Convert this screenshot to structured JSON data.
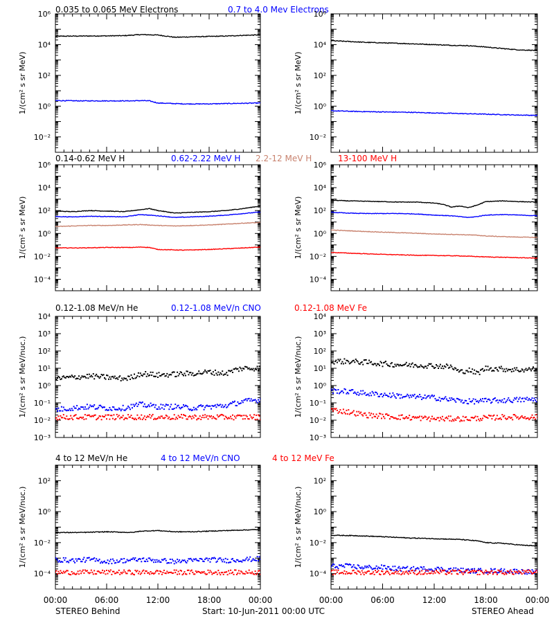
{
  "footer": {
    "x_ticks": [
      "00:00",
      "06:00",
      "12:00",
      "18:00",
      "00:00"
    ],
    "left_label": "STEREO Behind",
    "center_label": "Start: 10-Jun-2011 00:00 UTC",
    "right_label": "STEREO Ahead"
  },
  "colors": {
    "black": "#000000",
    "blue": "#0000ff",
    "tan": "#c8826e",
    "red": "#ff0000"
  },
  "chart_data": [
    {
      "type": "line",
      "panel": "row1-left",
      "legend": [
        {
          "text": "0.035 to 0.065 MeV Electrons",
          "color": "#000000"
        },
        {
          "text": "0.7 to 4.0 Mev Electrons",
          "color": "#0000ff"
        }
      ],
      "ylabel": "1/(cm² s sr MeV)",
      "yscale": "log",
      "ylim": [
        0.001,
        1000000
      ],
      "y_ticks": [
        {
          "v": 1000000,
          "t": "10⁶"
        },
        {
          "v": 10000,
          "t": "10⁴"
        },
        {
          "v": 100,
          "t": "10²"
        },
        {
          "v": 1,
          "t": "10⁰"
        },
        {
          "v": 0.01,
          "t": "10⁻²"
        }
      ],
      "xlim": [
        0,
        24
      ],
      "series": [
        {
          "color": "#000000",
          "style": "line",
          "x": [
            0,
            3,
            6,
            8,
            10,
            12,
            14,
            16,
            18,
            20,
            22,
            24
          ],
          "y": [
            35000,
            36000,
            37000,
            38000,
            45000,
            42000,
            30000,
            32000,
            34000,
            36000,
            40000,
            43000
          ]
        },
        {
          "color": "#0000ff",
          "style": "line",
          "x": [
            0,
            3,
            6,
            9,
            10,
            11,
            12,
            15,
            18,
            21,
            24
          ],
          "y": [
            2.3,
            2.2,
            2.2,
            2.2,
            2.3,
            2.2,
            1.6,
            1.4,
            1.4,
            1.5,
            1.6
          ]
        }
      ]
    },
    {
      "type": "line",
      "panel": "row1-right",
      "legend": [],
      "ylabel": "1/(cm² s sr MeV)",
      "yscale": "log",
      "ylim": [
        0.001,
        1000000
      ],
      "y_ticks": [
        {
          "v": 1000000,
          "t": "10⁶"
        },
        {
          "v": 10000,
          "t": "10⁴"
        },
        {
          "v": 100,
          "t": "10²"
        },
        {
          "v": 1,
          "t": "10⁰"
        },
        {
          "v": 0.01,
          "t": "10⁻²"
        }
      ],
      "xlim": [
        0,
        24
      ],
      "series": [
        {
          "color": "#000000",
          "style": "line",
          "x": [
            0,
            2,
            4,
            6,
            8,
            10,
            12,
            14,
            16,
            18,
            20,
            22,
            24
          ],
          "y": [
            18000,
            16000,
            14000,
            13000,
            12000,
            11000,
            10000,
            9000,
            8500,
            7000,
            5500,
            4500,
            4200
          ]
        },
        {
          "color": "#0000ff",
          "style": "line",
          "x": [
            0,
            3,
            6,
            9,
            12,
            15,
            18,
            21,
            24
          ],
          "y": [
            0.5,
            0.45,
            0.42,
            0.4,
            0.36,
            0.33,
            0.3,
            0.27,
            0.25
          ]
        }
      ]
    },
    {
      "type": "line",
      "panel": "row2-left",
      "legend": [
        {
          "text": "0.14-0.62 MeV H",
          "color": "#000000"
        },
        {
          "text": "0.62-2.22 MeV H",
          "color": "#0000ff"
        },
        {
          "text": "2.2-12 MeV H",
          "color": "#c8826e"
        },
        {
          "text": "13-100 MeV H",
          "color": "#ff0000"
        }
      ],
      "ylabel": "1/(cm² s sr MeV)",
      "yscale": "log",
      "ylim": [
        1e-05,
        1000000
      ],
      "y_ticks": [
        {
          "v": 1000000,
          "t": "10⁶"
        },
        {
          "v": 10000,
          "t": "10⁴"
        },
        {
          "v": 100,
          "t": "10²"
        },
        {
          "v": 1,
          "t": "10⁰"
        },
        {
          "v": 0.01,
          "t": "10⁻²"
        },
        {
          "v": 0.0001,
          "t": "10⁻⁴"
        }
      ],
      "xlim": [
        0,
        24
      ],
      "series": [
        {
          "color": "#000000",
          "style": "line",
          "x": [
            0,
            2,
            4,
            6,
            8,
            10,
            11,
            12,
            14,
            16,
            18,
            20,
            22,
            24
          ],
          "y": [
            90,
            80,
            100,
            90,
            80,
            120,
            150,
            100,
            60,
            70,
            80,
            100,
            150,
            250
          ]
        },
        {
          "color": "#0000ff",
          "style": "line",
          "x": [
            0,
            2,
            4,
            6,
            8,
            10,
            12,
            14,
            16,
            18,
            20,
            22,
            24
          ],
          "y": [
            30,
            28,
            32,
            30,
            28,
            45,
            35,
            25,
            28,
            32,
            40,
            55,
            75
          ]
        },
        {
          "color": "#c8826e",
          "style": "line",
          "x": [
            0,
            2,
            4,
            6,
            8,
            10,
            12,
            14,
            16,
            18,
            20,
            22,
            24
          ],
          "y": [
            4,
            4.5,
            5,
            5,
            5.5,
            6,
            5,
            4.5,
            5,
            5.5,
            6.5,
            8,
            9
          ]
        },
        {
          "color": "#ff0000",
          "style": "line",
          "x": [
            0,
            3,
            6,
            9,
            10,
            11,
            12,
            15,
            18,
            21,
            24
          ],
          "y": [
            0.055,
            0.055,
            0.06,
            0.06,
            0.065,
            0.06,
            0.04,
            0.035,
            0.04,
            0.05,
            0.065
          ]
        }
      ]
    },
    {
      "type": "line",
      "panel": "row2-right",
      "legend": [],
      "ylabel": "1/(cm² s sr MeV)",
      "yscale": "log",
      "ylim": [
        1e-05,
        1000000
      ],
      "y_ticks": [
        {
          "v": 1000000,
          "t": "10⁶"
        },
        {
          "v": 10000,
          "t": "10⁴"
        },
        {
          "v": 100,
          "t": "10²"
        },
        {
          "v": 1,
          "t": "10⁰"
        },
        {
          "v": 0.01,
          "t": "10⁻²"
        },
        {
          "v": 0.0001,
          "t": "10⁻⁴"
        }
      ],
      "xlim": [
        0,
        24
      ],
      "series": [
        {
          "color": "#000000",
          "style": "line",
          "x": [
            0,
            2,
            4,
            6,
            8,
            10,
            12,
            13,
            14,
            15,
            16,
            17,
            18,
            20,
            22,
            24
          ],
          "y": [
            800,
            700,
            650,
            600,
            550,
            550,
            450,
            350,
            200,
            250,
            180,
            300,
            600,
            700,
            600,
            550
          ]
        },
        {
          "color": "#0000ff",
          "style": "line",
          "x": [
            0,
            2,
            4,
            6,
            8,
            10,
            12,
            14,
            16,
            17,
            18,
            20,
            22,
            24
          ],
          "y": [
            70,
            60,
            55,
            55,
            55,
            50,
            40,
            35,
            25,
            30,
            40,
            45,
            40,
            35
          ]
        },
        {
          "color": "#c8826e",
          "style": "line",
          "x": [
            0,
            3,
            6,
            9,
            12,
            15,
            17,
            18,
            21,
            24
          ],
          "y": [
            2,
            1.6,
            1.3,
            1.1,
            0.9,
            0.8,
            0.7,
            0.6,
            0.5,
            0.45
          ]
        },
        {
          "color": "#ff0000",
          "style": "line",
          "x": [
            0,
            3,
            6,
            9,
            12,
            15,
            18,
            21,
            24
          ],
          "y": [
            0.022,
            0.018,
            0.015,
            0.013,
            0.012,
            0.011,
            0.009,
            0.008,
            0.007
          ]
        }
      ]
    },
    {
      "type": "scatter",
      "panel": "row3-left",
      "legend": [
        {
          "text": "0.12-1.08 MeV/n He",
          "color": "#000000"
        },
        {
          "text": "0.12-1.08 MeV/n CNO",
          "color": "#0000ff"
        },
        {
          "text": "0.12-1.08 MeV Fe",
          "color": "#ff0000"
        }
      ],
      "ylabel": "1/(cm² s sr MeV/nuc.)",
      "yscale": "log",
      "ylim": [
        0.001,
        10000
      ],
      "y_ticks": [
        {
          "v": 10000,
          "t": "10⁴"
        },
        {
          "v": 1000,
          "t": "10³"
        },
        {
          "v": 100,
          "t": "10²"
        },
        {
          "v": 10,
          "t": "10¹"
        },
        {
          "v": 1,
          "t": "10⁰"
        },
        {
          "v": 0.1,
          "t": "10⁻¹"
        },
        {
          "v": 0.01,
          "t": "10⁻²"
        },
        {
          "v": 0.001,
          "t": "10⁻³"
        }
      ],
      "xlim": [
        0,
        24
      ],
      "series": [
        {
          "color": "#000000",
          "style": "dots",
          "x": [
            0,
            2,
            4,
            6,
            8,
            9,
            10,
            12,
            14,
            16,
            18,
            20,
            21,
            22,
            24
          ],
          "y": [
            2.5,
            3,
            3.5,
            3,
            2.5,
            3,
            5,
            4,
            4.5,
            5,
            6,
            5,
            8,
            10,
            10
          ]
        },
        {
          "color": "#0000ff",
          "style": "dots",
          "x": [
            0,
            2,
            4,
            6,
            8,
            10,
            12,
            14,
            16,
            18,
            20,
            22,
            24
          ],
          "y": [
            0.04,
            0.05,
            0.06,
            0.05,
            0.05,
            0.08,
            0.06,
            0.06,
            0.05,
            0.06,
            0.07,
            0.12,
            0.15
          ]
        },
        {
          "color": "#ff0000",
          "style": "dots",
          "x": [
            0,
            4,
            8,
            12,
            16,
            20,
            24
          ],
          "y": [
            0.015,
            0.015,
            0.015,
            0.015,
            0.015,
            0.015,
            0.015
          ]
        }
      ]
    },
    {
      "type": "scatter",
      "panel": "row3-right",
      "legend": [],
      "ylabel": "1/(cm² s sr MeV/nuc.)",
      "yscale": "log",
      "ylim": [
        0.001,
        10000
      ],
      "y_ticks": [
        {
          "v": 10000,
          "t": "10⁴"
        },
        {
          "v": 1000,
          "t": "10³"
        },
        {
          "v": 100,
          "t": "10²"
        },
        {
          "v": 10,
          "t": "10¹"
        },
        {
          "v": 1,
          "t": "10⁰"
        },
        {
          "v": 0.1,
          "t": "10⁻¹"
        },
        {
          "v": 0.01,
          "t": "10⁻²"
        },
        {
          "v": 0.001,
          "t": "10⁻³"
        }
      ],
      "xlim": [
        0,
        24
      ],
      "series": [
        {
          "color": "#000000",
          "style": "dots",
          "x": [
            0,
            2,
            4,
            6,
            8,
            10,
            12,
            14,
            15,
            16,
            17,
            18,
            20,
            22,
            24
          ],
          "y": [
            25,
            25,
            22,
            18,
            16,
            15,
            14,
            12,
            6,
            8,
            5,
            10,
            9,
            8,
            9
          ]
        },
        {
          "color": "#0000ff",
          "style": "dots",
          "x": [
            0,
            2,
            4,
            6,
            8,
            10,
            12,
            14,
            16,
            18,
            20,
            22,
            24
          ],
          "y": [
            0.5,
            0.45,
            0.35,
            0.3,
            0.25,
            0.22,
            0.2,
            0.15,
            0.12,
            0.13,
            0.14,
            0.15,
            0.16
          ]
        },
        {
          "color": "#ff0000",
          "style": "dots",
          "x": [
            0,
            2,
            4,
            8,
            12,
            16,
            20,
            24
          ],
          "y": [
            0.04,
            0.03,
            0.02,
            0.015,
            0.012,
            0.012,
            0.015,
            0.015
          ]
        }
      ]
    },
    {
      "type": "scatter",
      "panel": "row4-left",
      "legend": [
        {
          "text": "4 to 12 MeV/n He",
          "color": "#000000"
        },
        {
          "text": "4 to 12 MeV/n CNO",
          "color": "#0000ff"
        },
        {
          "text": "4 to 12 MeV Fe",
          "color": "#ff0000"
        }
      ],
      "ylabel": "1/(cm² s sr MeV/nuc.)",
      "yscale": "log",
      "ylim": [
        1e-05,
        1000
      ],
      "y_ticks": [
        {
          "v": 100,
          "t": "10²"
        },
        {
          "v": 1,
          "t": "10⁰"
        },
        {
          "v": 0.01,
          "t": "10⁻²"
        },
        {
          "v": 0.0001,
          "t": "10⁻⁴"
        }
      ],
      "xlim": [
        0,
        24
      ],
      "series": [
        {
          "color": "#000000",
          "style": "line",
          "x": [
            0,
            3,
            6,
            9,
            10,
            12,
            14,
            16,
            18,
            20,
            22,
            24
          ],
          "y": [
            0.045,
            0.045,
            0.05,
            0.045,
            0.055,
            0.06,
            0.05,
            0.05,
            0.055,
            0.06,
            0.065,
            0.07
          ]
        },
        {
          "color": "#0000ff",
          "style": "dots",
          "x": [
            0,
            2,
            4,
            6,
            8,
            10,
            12,
            14,
            16,
            18,
            20,
            22,
            24
          ],
          "y": [
            0.0008,
            0.0007,
            0.0008,
            0.0006,
            0.0007,
            0.0008,
            0.0007,
            0.0006,
            0.0007,
            0.0008,
            0.0007,
            0.0008,
            0.0009
          ]
        },
        {
          "color": "#ff0000",
          "style": "dots",
          "x": [
            0,
            4,
            8,
            12,
            16,
            20,
            24
          ],
          "y": [
            0.00012,
            0.00012,
            0.00012,
            0.00012,
            0.00012,
            0.00012,
            0.00012
          ]
        }
      ]
    },
    {
      "type": "scatter",
      "panel": "row4-right",
      "legend": [],
      "ylabel": "1/(cm² s sr MeV/nuc.)",
      "yscale": "log",
      "ylim": [
        1e-05,
        1000
      ],
      "y_ticks": [
        {
          "v": 100,
          "t": "10²"
        },
        {
          "v": 1,
          "t": "10⁰"
        },
        {
          "v": 0.01,
          "t": "10⁻²"
        },
        {
          "v": 0.0001,
          "t": "10⁻⁴"
        }
      ],
      "xlim": [
        0,
        24
      ],
      "series": [
        {
          "color": "#000000",
          "style": "line",
          "x": [
            0,
            3,
            6,
            9,
            12,
            15,
            17,
            18,
            20,
            22,
            24
          ],
          "y": [
            0.03,
            0.028,
            0.024,
            0.02,
            0.018,
            0.016,
            0.013,
            0.01,
            0.009,
            0.007,
            0.006
          ]
        },
        {
          "color": "#0000ff",
          "style": "dots",
          "x": [
            0,
            2,
            4,
            6,
            8,
            10,
            12,
            14,
            16,
            18,
            20,
            22,
            24
          ],
          "y": [
            0.0003,
            0.0003,
            0.00025,
            0.00025,
            0.0002,
            0.0002,
            0.0002,
            0.00018,
            0.00015,
            0.00015,
            0.00015,
            0.00014,
            0.00012
          ]
        },
        {
          "color": "#ff0000",
          "style": "dots",
          "x": [
            0,
            4,
            8,
            12,
            16,
            20,
            24
          ],
          "y": [
            0.00012,
            0.00012,
            0.00012,
            0.00012,
            0.00012,
            0.00012,
            0.00012
          ]
        }
      ]
    }
  ]
}
